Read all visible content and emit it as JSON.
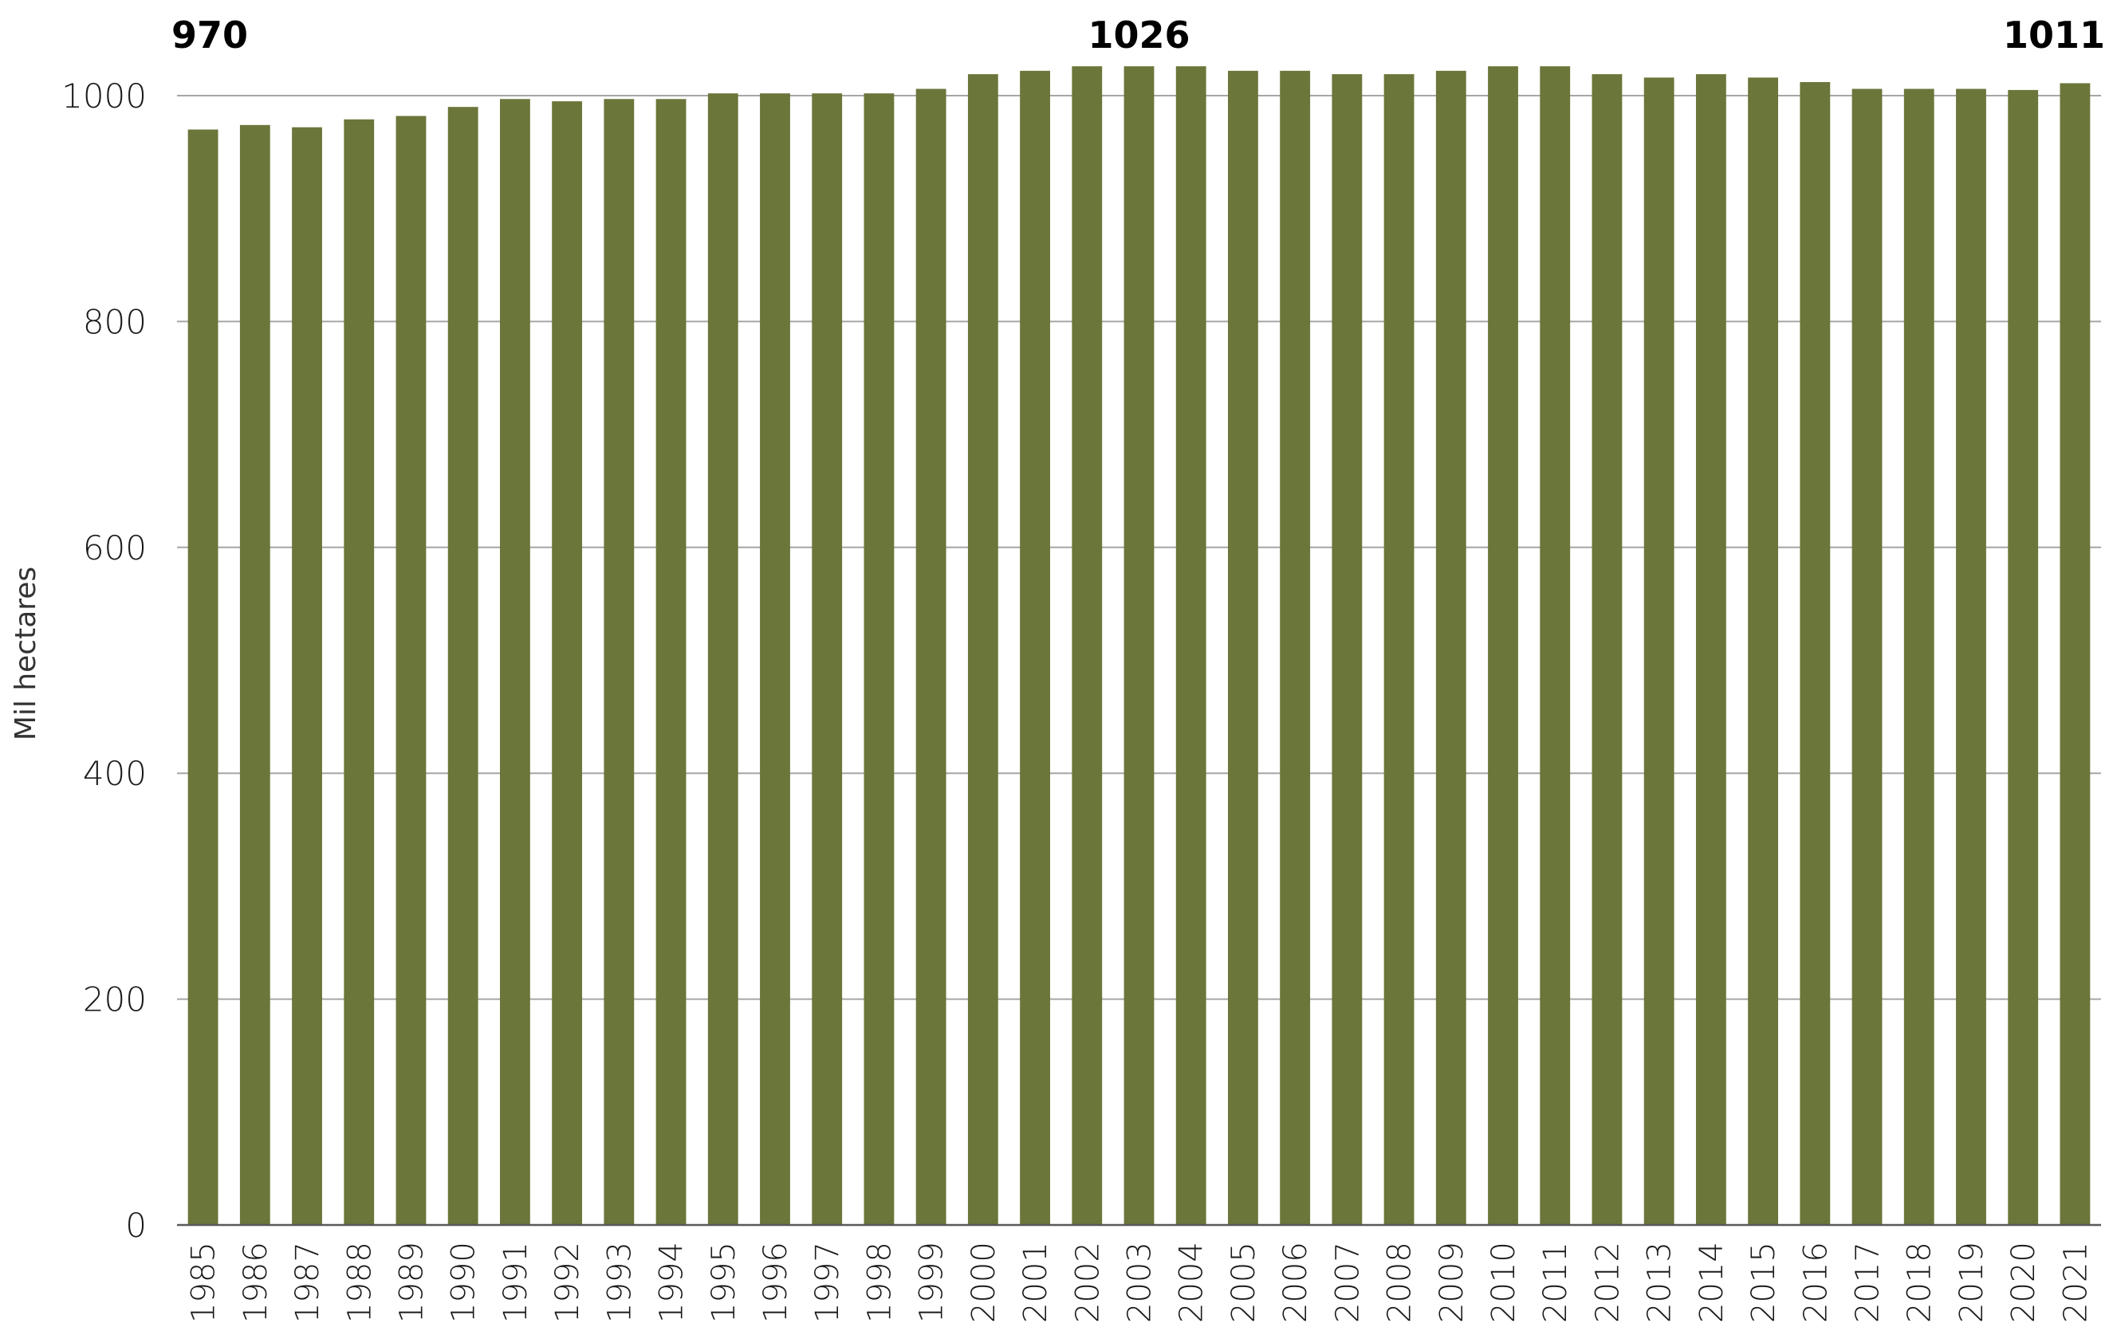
{
  "chart_data": {
    "type": "bar",
    "title": "",
    "xlabel": "",
    "ylabel": "Mil hectares",
    "ylim": [
      0,
      1000
    ],
    "yticks": [
      0,
      200,
      400,
      600,
      800,
      1000
    ],
    "grid": true,
    "bar_color": "#6b763a",
    "categories": [
      "1985",
      "1986",
      "1987",
      "1988",
      "1989",
      "1990",
      "1991",
      "1992",
      "1993",
      "1994",
      "1995",
      "1996",
      "1997",
      "1998",
      "1999",
      "2000",
      "2001",
      "2002",
      "2003",
      "2004",
      "2005",
      "2006",
      "2007",
      "2008",
      "2009",
      "2010",
      "2011",
      "2012",
      "2013",
      "2014",
      "2015",
      "2016",
      "2017",
      "2018",
      "2019",
      "2020",
      "2021"
    ],
    "values": [
      970,
      974,
      972,
      979,
      982,
      990,
      997,
      995,
      997,
      997,
      1002,
      1002,
      1002,
      1002,
      1006,
      1019,
      1022,
      1026,
      1026,
      1026,
      1022,
      1022,
      1019,
      1019,
      1022,
      1026,
      1026,
      1019,
      1016,
      1019,
      1016,
      1012,
      1006,
      1006,
      1006,
      1005,
      1011
    ],
    "annotations": [
      {
        "category": "1985",
        "text": "970"
      },
      {
        "category": "2003",
        "text": "1026"
      },
      {
        "category": "2021",
        "text": "1011"
      }
    ]
  }
}
